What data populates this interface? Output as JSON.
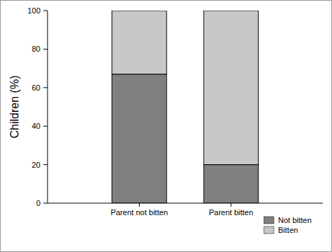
{
  "chart_data": {
    "type": "bar",
    "stacked": true,
    "y_label": "Children (%)",
    "categories": [
      "Parent not bitten",
      "Parent bitten"
    ],
    "series": [
      {
        "name": "Not bitten",
        "color": "#808080",
        "values": [
          67,
          20
        ]
      },
      {
        "name": "Bitten",
        "color": "#c8c8c8",
        "values": [
          33,
          80
        ]
      }
    ],
    "ylim": [
      0,
      100
    ],
    "yticks": [
      0,
      20,
      40,
      60,
      80,
      100
    ],
    "legend": "bottom-right"
  }
}
